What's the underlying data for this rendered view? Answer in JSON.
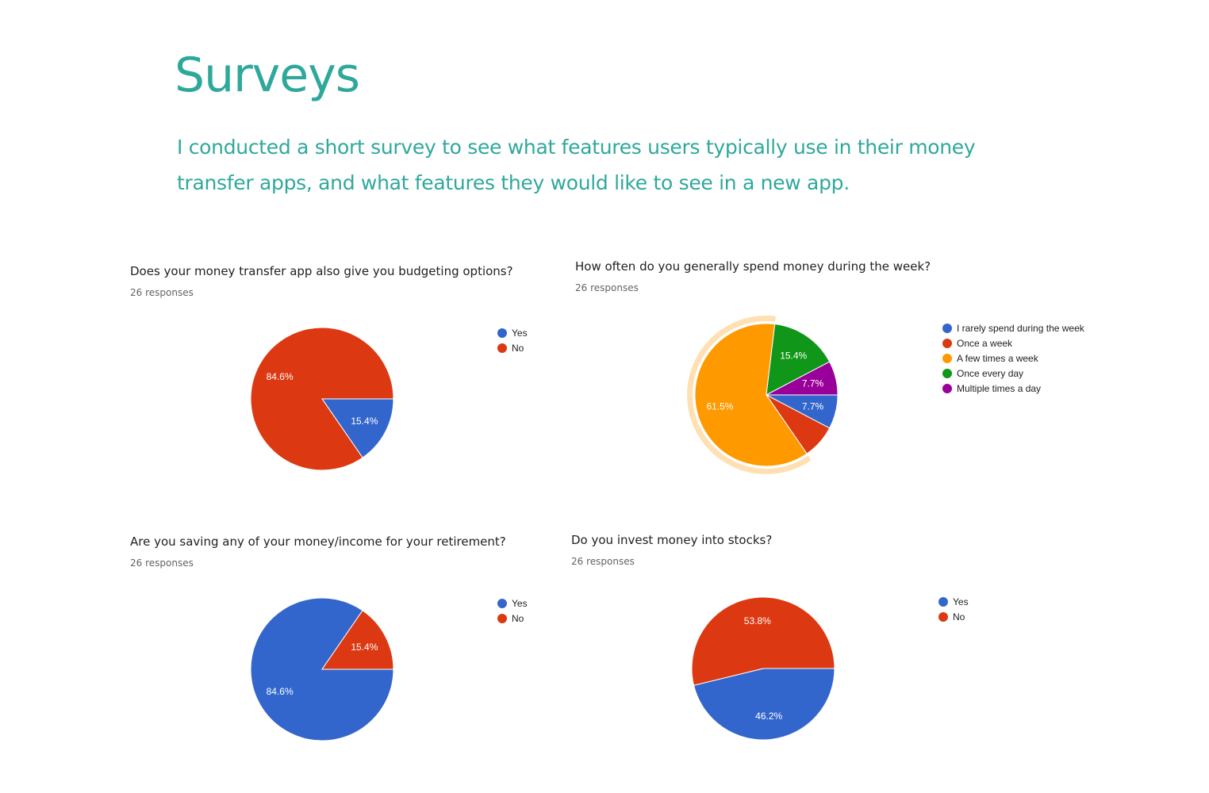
{
  "page": {
    "title": "Surveys",
    "intro": "I conducted a short survey to see what features users typically use in their money transfer apps, and what features they would like to see in a new app."
  },
  "colors": {
    "accent": "#2fa89c"
  },
  "chart_data": [
    {
      "type": "pie",
      "title": "Does your money transfer app also give you budgeting options?",
      "subtitle": "26 responses",
      "categories": [
        "Yes",
        "No"
      ],
      "values": [
        15.4,
        84.6
      ],
      "labels": [
        "15.4%",
        "84.6%"
      ],
      "colors": [
        "#3366cc",
        "#dc3912"
      ],
      "legend_position": "right"
    },
    {
      "type": "pie",
      "title": "How often do you generally spend money during the week?",
      "subtitle": "26 responses",
      "categories": [
        "I rarely spend during the week",
        "Once a week",
        "A few times a week",
        "Once every day",
        "Multiple times a day"
      ],
      "values": [
        7.7,
        7.7,
        61.5,
        15.4,
        7.7
      ],
      "labels": [
        "7.7%",
        "",
        "61.5%",
        "15.4%",
        "7.7%"
      ],
      "colors": [
        "#3366cc",
        "#dc3912",
        "#ff9900",
        "#109618",
        "#990099"
      ],
      "highlighted": "A few times a week",
      "legend_position": "right"
    },
    {
      "type": "pie",
      "title": "Are you saving any of your money/income for your retirement?",
      "subtitle": "26 responses",
      "categories": [
        "Yes",
        "No"
      ],
      "values": [
        84.6,
        15.4
      ],
      "labels": [
        "84.6%",
        "15.4%"
      ],
      "colors": [
        "#3366cc",
        "#dc3912"
      ],
      "legend_position": "right"
    },
    {
      "type": "pie",
      "title": "Do you invest money into stocks?",
      "subtitle": "26 responses",
      "categories": [
        "Yes",
        "No"
      ],
      "values": [
        46.2,
        53.8
      ],
      "labels": [
        "46.2%",
        "53.8%"
      ],
      "colors": [
        "#3366cc",
        "#dc3912"
      ],
      "legend_position": "right"
    }
  ]
}
